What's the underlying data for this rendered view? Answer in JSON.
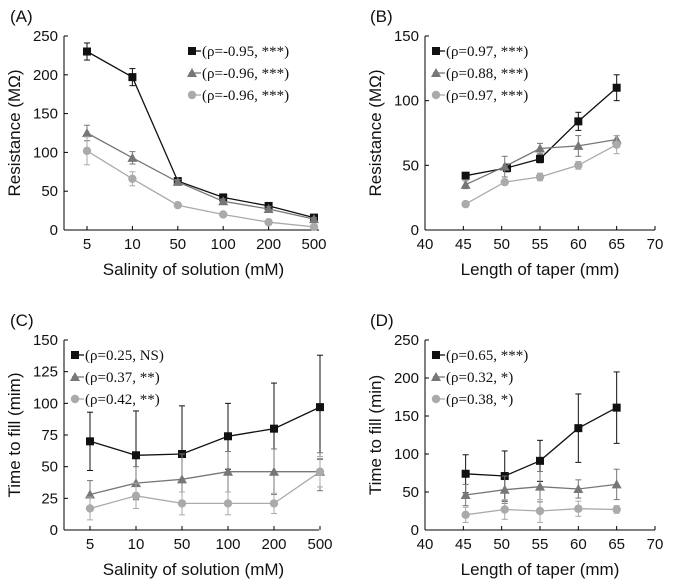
{
  "chart_data": [
    {
      "panel": "(A)",
      "type": "line",
      "xlabel": "Salinity of solution (mM)",
      "ylabel": "Resistance (MΩ)",
      "x_scale": "categorical",
      "categories": [
        "5",
        "10",
        "50",
        "100",
        "200",
        "500"
      ],
      "ylim": [
        0,
        250
      ],
      "yticks": [
        0,
        50,
        100,
        150,
        200,
        250
      ],
      "legend_position": "top-right",
      "series": [
        {
          "name": "(ρ=-0.95, ***)",
          "color": "#111111",
          "marker": "square",
          "values": [
            230,
            197,
            63,
            42,
            31,
            16
          ],
          "errors": [
            11,
            11,
            3,
            3,
            3,
            2
          ]
        },
        {
          "name": "(ρ=-0.96, ***)",
          "color": "#777777",
          "marker": "triangle",
          "values": [
            125,
            93,
            62,
            37,
            27,
            14
          ],
          "errors": [
            10,
            8,
            3,
            3,
            3,
            2
          ]
        },
        {
          "name": "(ρ=-0.96, ***)",
          "color": "#aaaaaa",
          "marker": "circle",
          "values": [
            102,
            66,
            32,
            20,
            10,
            4
          ],
          "errors": [
            18,
            9,
            3,
            3,
            2,
            1
          ]
        }
      ]
    },
    {
      "panel": "(B)",
      "type": "line",
      "xlabel": "Length of taper (mm)",
      "ylabel": "Resistance (MΩ)",
      "x_scale": "linear",
      "xlim": [
        40,
        70
      ],
      "xticks": [
        40,
        45,
        50,
        55,
        60,
        65,
        70
      ],
      "ylim": [
        0,
        150
      ],
      "yticks": [
        0,
        50,
        100,
        150
      ],
      "legend_position": "top-left",
      "series": [
        {
          "name": "(ρ=0.97, ***)",
          "color": "#111111",
          "marker": "square",
          "x": [
            45.3,
            50.7,
            55,
            60,
            65
          ],
          "values": [
            42,
            48,
            55,
            84,
            110
          ],
          "errors": [
            2,
            3,
            3,
            7,
            10
          ]
        },
        {
          "name": "(ρ=0.88, ***)",
          "color": "#777777",
          "marker": "triangle",
          "x": [
            45.3,
            50.4,
            55,
            60,
            65
          ],
          "values": [
            35,
            49,
            63,
            65,
            70
          ],
          "errors": [
            3,
            8,
            4,
            8,
            3
          ]
        },
        {
          "name": "(ρ=0.97, ***)",
          "color": "#aaaaaa",
          "marker": "circle",
          "x": [
            45.3,
            50.4,
            55,
            60,
            65
          ],
          "values": [
            20,
            37,
            41,
            50,
            66
          ],
          "errors": [
            2,
            2,
            3,
            3,
            7
          ]
        }
      ]
    },
    {
      "panel": "(C)",
      "type": "line",
      "xlabel": "Salinity of solution (mM)",
      "ylabel": "Time to fill (mim)",
      "x_scale": "categorical",
      "categories": [
        "5",
        "10",
        "50",
        "100",
        "200",
        "500"
      ],
      "ylim": [
        0,
        150
      ],
      "yticks": [
        0,
        25,
        50,
        75,
        100,
        125,
        150
      ],
      "legend_position": "top-left",
      "series": [
        {
          "name": "(ρ=0.25, NS)",
          "color": "#111111",
          "marker": "square",
          "values": [
            70,
            59,
            60,
            74,
            80,
            97
          ],
          "errors": [
            23,
            35,
            38,
            26,
            36,
            41
          ]
        },
        {
          "name": "(ρ=0.37, **)",
          "color": "#777777",
          "marker": "triangle",
          "values": [
            28,
            37,
            40,
            46,
            46,
            46
          ],
          "errors": [
            11,
            13,
            20,
            16,
            18,
            15
          ]
        },
        {
          "name": "(ρ=0.42, **)",
          "color": "#aaaaaa",
          "marker": "circle",
          "values": [
            17,
            27,
            21,
            21,
            21,
            46
          ],
          "errors": [
            9,
            10,
            9,
            9,
            8,
            12
          ]
        }
      ]
    },
    {
      "panel": "(D)",
      "type": "line",
      "xlabel": "Length of taper (mm)",
      "ylabel": "Time to fill (min)",
      "x_scale": "linear",
      "xlim": [
        40,
        70
      ],
      "xticks": [
        40,
        45,
        50,
        55,
        60,
        65,
        70
      ],
      "ylim": [
        0,
        250
      ],
      "yticks": [
        0,
        50,
        100,
        150,
        200,
        250
      ],
      "legend_position": "top-left",
      "series": [
        {
          "name": "(ρ=0.65, ***)",
          "color": "#111111",
          "marker": "square",
          "x": [
            45.3,
            50.4,
            55,
            60,
            65
          ],
          "values": [
            74,
            71,
            91,
            134,
            161
          ],
          "errors": [
            25,
            33,
            27,
            45,
            47
          ]
        },
        {
          "name": "(ρ=0.32, *)",
          "color": "#777777",
          "marker": "triangle",
          "x": [
            45.3,
            50.4,
            55,
            60,
            65
          ],
          "values": [
            46,
            53,
            57,
            54,
            60
          ],
          "errors": [
            14,
            18,
            20,
            12,
            20
          ]
        },
        {
          "name": "(ρ=0.38, *)",
          "color": "#aaaaaa",
          "marker": "circle",
          "x": [
            45.3,
            50.4,
            55,
            60,
            65
          ],
          "values": [
            20,
            27,
            25,
            28,
            27
          ],
          "errors": [
            10,
            13,
            15,
            10,
            5
          ]
        }
      ]
    }
  ]
}
